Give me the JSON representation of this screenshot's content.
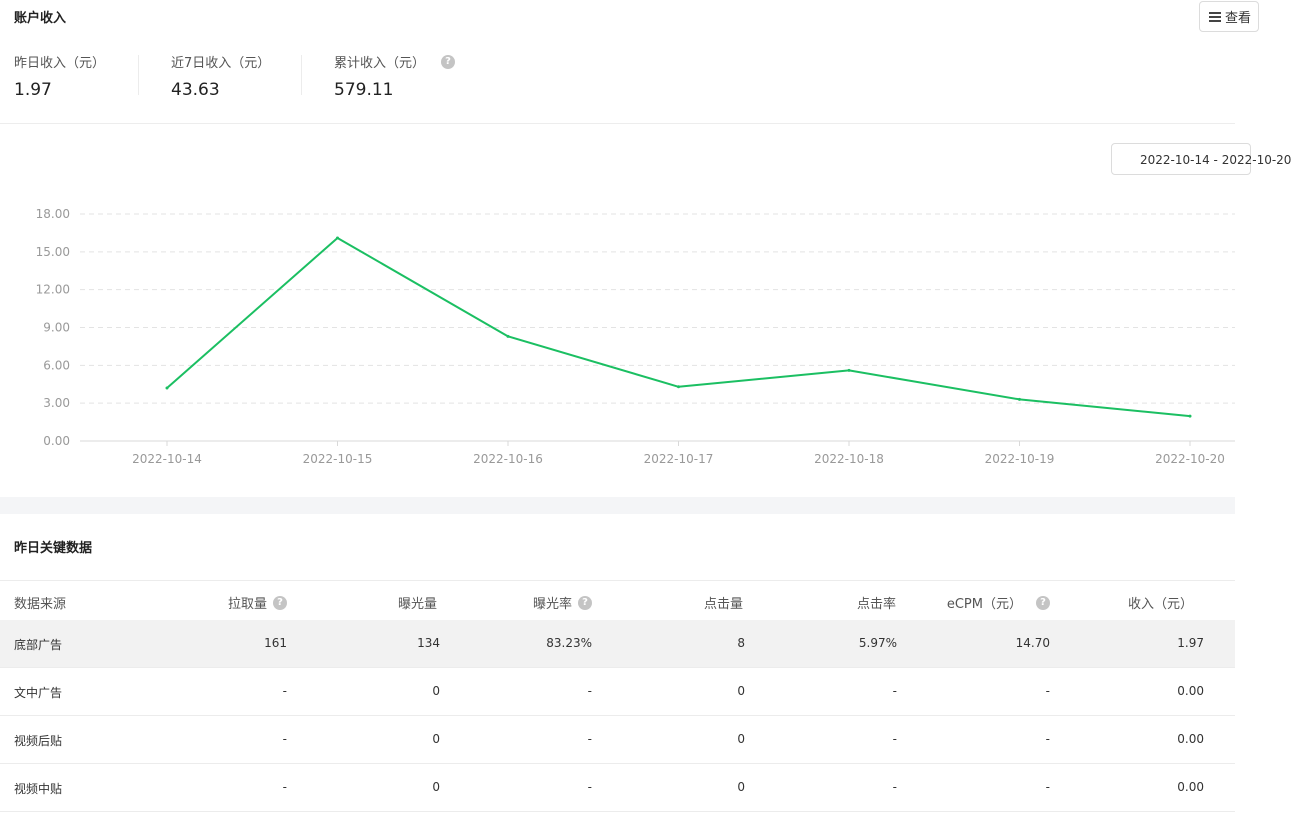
{
  "account": {
    "title": "账户收入",
    "menu_label": "查看",
    "stats": [
      {
        "label": "昨日收入（元）",
        "value": "1.97"
      },
      {
        "label": "近7日收入（元）",
        "value": "43.63"
      },
      {
        "label": "累计收入（元）",
        "value": "579.11"
      }
    ],
    "date_range": "2022-10-14 - 2022-10-20"
  },
  "chart_data": {
    "type": "line",
    "categories": [
      "2022-10-14",
      "2022-10-15",
      "2022-10-16",
      "2022-10-17",
      "2022-10-18",
      "2022-10-19",
      "2022-10-20"
    ],
    "series": [
      {
        "values": [
          4.2,
          16.1,
          8.3,
          4.3,
          5.6,
          3.3,
          1.97
        ]
      }
    ],
    "ylim": [
      0,
      18
    ],
    "yticks": [
      "0.00",
      "3.00",
      "6.00",
      "9.00",
      "12.00",
      "15.00",
      "18.00"
    ],
    "grid": true,
    "line_color": "#1bbf62"
  },
  "key_data": {
    "title": "昨日关键数据",
    "columns": [
      "数据来源",
      "拉取量",
      "曝光量",
      "曝光率",
      "点击量",
      "点击率",
      "eCPM（元）",
      "收入（元）"
    ],
    "rows": [
      [
        "底部广告",
        "161",
        "134",
        "83.23%",
        "8",
        "5.97%",
        "14.70",
        "1.97"
      ],
      [
        "文中广告",
        "-",
        "0",
        "-",
        "0",
        "-",
        "-",
        "0.00"
      ],
      [
        "视频后贴",
        "-",
        "0",
        "-",
        "0",
        "-",
        "-",
        "0.00"
      ],
      [
        "视频中贴",
        "-",
        "0",
        "-",
        "0",
        "-",
        "-",
        "0.00"
      ]
    ]
  },
  "colors": {
    "accent": "#1bbf62",
    "grid": "#e3e3e3",
    "help_icon": "#c4c4c4"
  }
}
